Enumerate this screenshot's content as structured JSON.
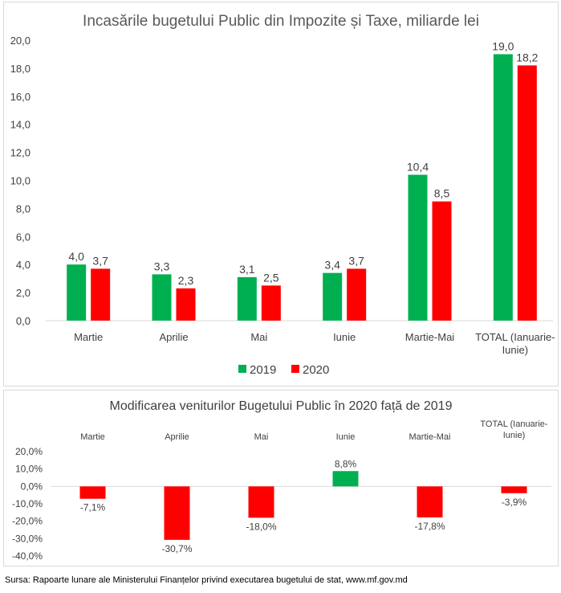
{
  "chart_data": [
    {
      "type": "bar",
      "title": "Incasările bugetului Public din Impozite și Taxe, miliarde lei",
      "categories": [
        "Martie",
        "Aprilie",
        "Mai",
        "Iunie",
        "Martie-Mai",
        "TOTAL (Ianuarie-Iunie)"
      ],
      "category_lines": [
        [
          "Martie"
        ],
        [
          "Aprilie"
        ],
        [
          "Mai"
        ],
        [
          "Iunie"
        ],
        [
          "Martie-Mai"
        ],
        [
          "TOTAL (Ianuarie-",
          "Iunie)"
        ]
      ],
      "series": [
        {
          "name": "2019",
          "values": [
            4.0,
            3.3,
            3.1,
            3.4,
            10.4,
            19.0
          ],
          "labels": [
            "4,0",
            "3,3",
            "3,1",
            "3,4",
            "10,4",
            "19,0"
          ],
          "color": "#00b050"
        },
        {
          "name": "2020",
          "values": [
            3.7,
            2.3,
            2.5,
            3.7,
            8.5,
            18.2
          ],
          "labels": [
            "3,7",
            "2,3",
            "2,5",
            "3,7",
            "8,5",
            "18,2"
          ],
          "color": "#ff0000"
        }
      ],
      "ylim": [
        0,
        20
      ],
      "yticks": [
        0,
        2,
        4,
        6,
        8,
        10,
        12,
        14,
        16,
        18,
        20
      ],
      "ytick_labels": [
        "0,0",
        "2,0",
        "4,0",
        "6,0",
        "8,0",
        "10,0",
        "12,0",
        "14,0",
        "16,0",
        "18,0",
        "20,0"
      ],
      "legend_position": "bottom",
      "xlabel": "",
      "ylabel": "",
      "grid": false
    },
    {
      "type": "bar",
      "title": "Modificarea  veniturilor Bugetului Public în 2020 față de 2019",
      "categories": [
        "Martie",
        "Aprilie",
        "Mai",
        "Iunie",
        "Martie-Mai",
        "TOTAL (Ianuarie-Iunie)"
      ],
      "category_lines": [
        [
          "Martie"
        ],
        [
          "Aprilie"
        ],
        [
          "Mai"
        ],
        [
          "Iunie"
        ],
        [
          "Martie-Mai"
        ],
        [
          "TOTAL (Ianuarie-",
          "Iunie)"
        ]
      ],
      "values": [
        -7.1,
        -30.7,
        -18.0,
        8.8,
        -17.8,
        -3.9
      ],
      "labels": [
        "-7,1%",
        "-30,7%",
        "-18,0%",
        "8,8%",
        "-17,8%",
        "-3,9%"
      ],
      "positive_color": "#00b050",
      "negative_color": "#ff0000",
      "ylim": [
        -40,
        20
      ],
      "yticks": [
        20,
        10,
        0,
        -10,
        -20,
        -30,
        -40
      ],
      "ytick_labels": [
        "20,0%",
        "10,0%",
        "0,0%",
        "-10,0%",
        "-20,0%",
        "-30,0%",
        "-40,0%"
      ],
      "category_labels_position": "top",
      "xlabel": "",
      "ylabel": "",
      "grid": false
    }
  ],
  "source": "Sursa: Rapoarte lunare ale Ministerului Finanțelor privind executarea bugetului de stat, www.mf.gov.md"
}
